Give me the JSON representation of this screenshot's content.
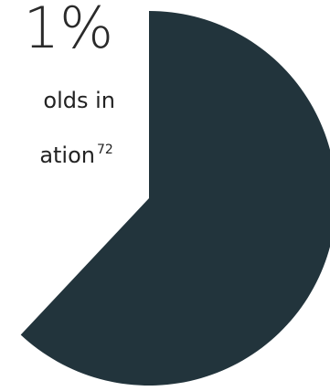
{
  "chart_data": {
    "type": "pie",
    "values": [
      62
    ],
    "color": "#22343c"
  },
  "text": {
    "headline": "1%",
    "line1": "olds in",
    "line2": "ation",
    "footnote": "72"
  }
}
